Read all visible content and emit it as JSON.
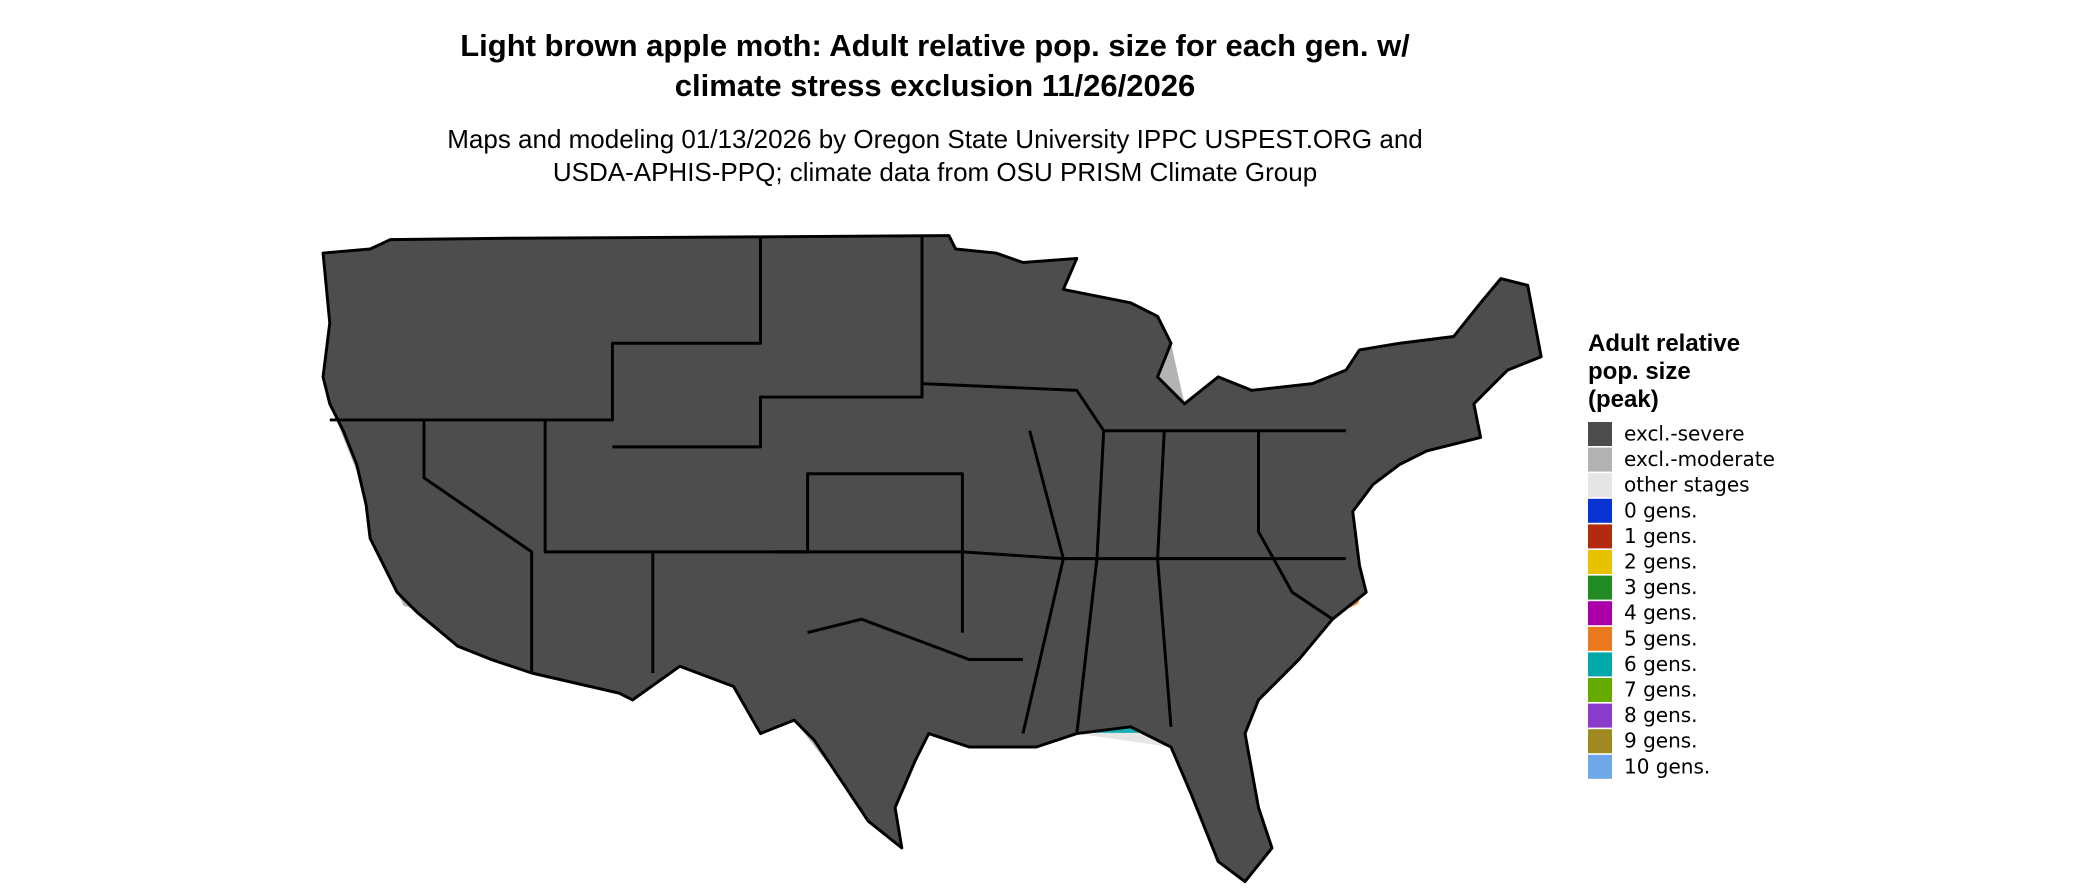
{
  "title": [
    "Light brown apple moth: Adult relative pop. size for each gen. w/",
    "climate stress exclusion 11/26/2026"
  ],
  "subtitle": [
    "Maps and modeling 01/13/2026 by Oregon State University IPPC USPEST.ORG and",
    "USDA-APHIS-PPQ; climate data from OSU PRISM Climate Group"
  ],
  "legend": {
    "title": [
      "Adult relative",
      "pop. size",
      "(peak)"
    ],
    "items": [
      {
        "label": "excl.-severe",
        "color": "#4d4d4d"
      },
      {
        "label": "excl.-moderate",
        "color": "#b3b3b3"
      },
      {
        "label": "other stages",
        "color": "#e5e5e5"
      },
      {
        "label": "0 gens.",
        "color": "#0a33d6"
      },
      {
        "label": "1 gens.",
        "color": "#b22a10"
      },
      {
        "label": "2 gens.",
        "color": "#e6c200"
      },
      {
        "label": "3 gens.",
        "color": "#228b22"
      },
      {
        "label": "4 gens.",
        "color": "#aa00aa"
      },
      {
        "label": "5 gens.",
        "color": "#e8791c"
      },
      {
        "label": "6 gens.",
        "color": "#00a8a8"
      },
      {
        "label": "7 gens.",
        "color": "#66aa00"
      },
      {
        "label": "8 gens.",
        "color": "#8a3ccc"
      },
      {
        "label": "9 gens.",
        "color": "#a08820"
      },
      {
        "label": "10 gens.",
        "color": "#6fa8e8"
      }
    ]
  }
}
